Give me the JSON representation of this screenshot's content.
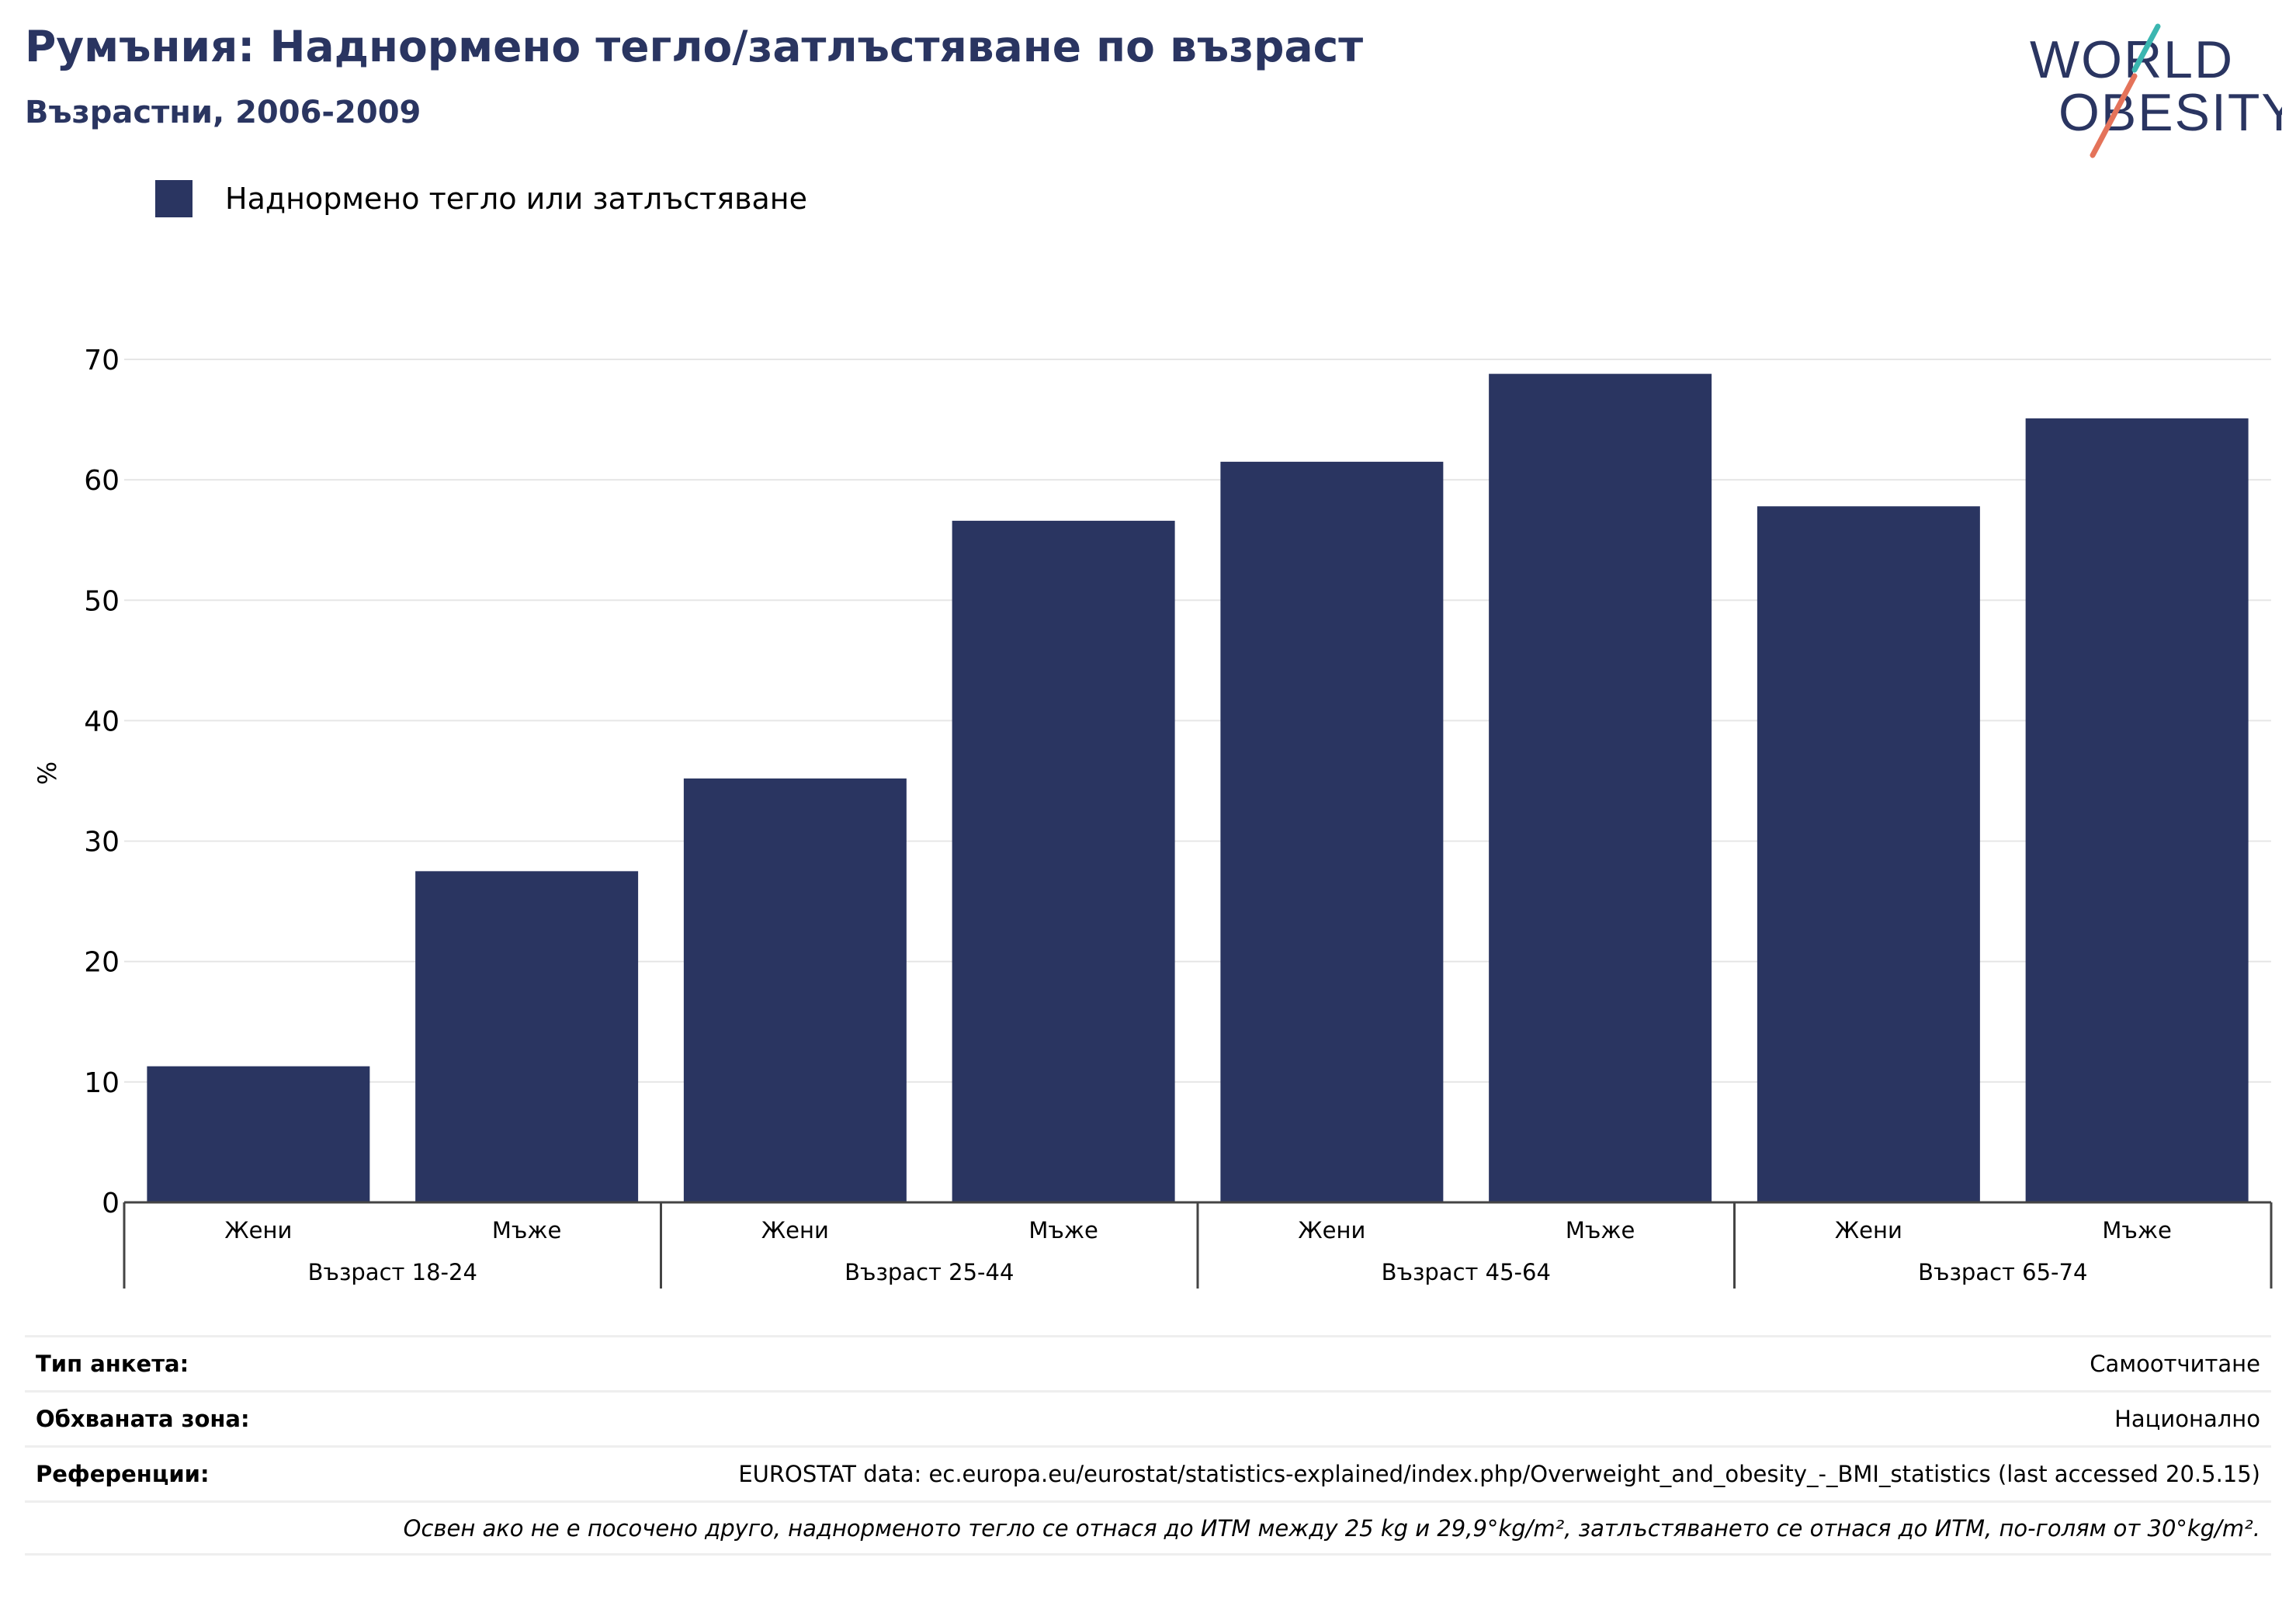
{
  "header": {
    "title": "Румъния: Наднормено тегло/затлъстяване по възраст",
    "subtitle": "Възрастни, 2006-2009"
  },
  "logo": {
    "line1": "WORLD",
    "line2": "OBESITY"
  },
  "legend": {
    "label": "Наднормено тегло или затлъстяване",
    "color": "#2a3561"
  },
  "chart_data": {
    "type": "bar",
    "ylabel": "%",
    "ylim": [
      0,
      70
    ],
    "yticks": [
      0,
      10,
      20,
      30,
      40,
      50,
      60,
      70
    ],
    "grid": true,
    "groups": [
      {
        "label": "Възраст 18-24",
        "categories": [
          "Жени",
          "Мъже"
        ],
        "values": [
          11.3,
          27.5
        ]
      },
      {
        "label": "Възраст 25-44",
        "categories": [
          "Жени",
          "Мъже"
        ],
        "values": [
          35.2,
          56.6
        ]
      },
      {
        "label": "Възраст 45-64",
        "categories": [
          "Жени",
          "Мъже"
        ],
        "values": [
          61.5,
          68.8
        ]
      },
      {
        "label": "Възраст 65-74",
        "categories": [
          "Жени",
          "Мъже"
        ],
        "values": [
          57.8,
          65.1
        ]
      }
    ],
    "series": [
      {
        "name": "Наднормено тегло или затлъстяване",
        "color": "#2a3561"
      }
    ]
  },
  "footer": {
    "survey_type_label": "Тип анкета:",
    "survey_type_value": "Самоотчитане",
    "coverage_label": "Обхваната зона:",
    "coverage_value": "Национално",
    "references_label": "Референции:",
    "references_value": "EUROSTAT data: ec.europa.eu/eurostat/statistics-explained/index.php/Overweight_and_obesity_-_BMI_statistics (last accessed 20.5.15)",
    "note": "Освен ако не е посочено друго, наднорменото тегло се отнася до ИТМ между 25 kg и 29,9°kg/m², затлъстяването се отнася до ИТМ, по-голям от 30°kg/m²."
  }
}
